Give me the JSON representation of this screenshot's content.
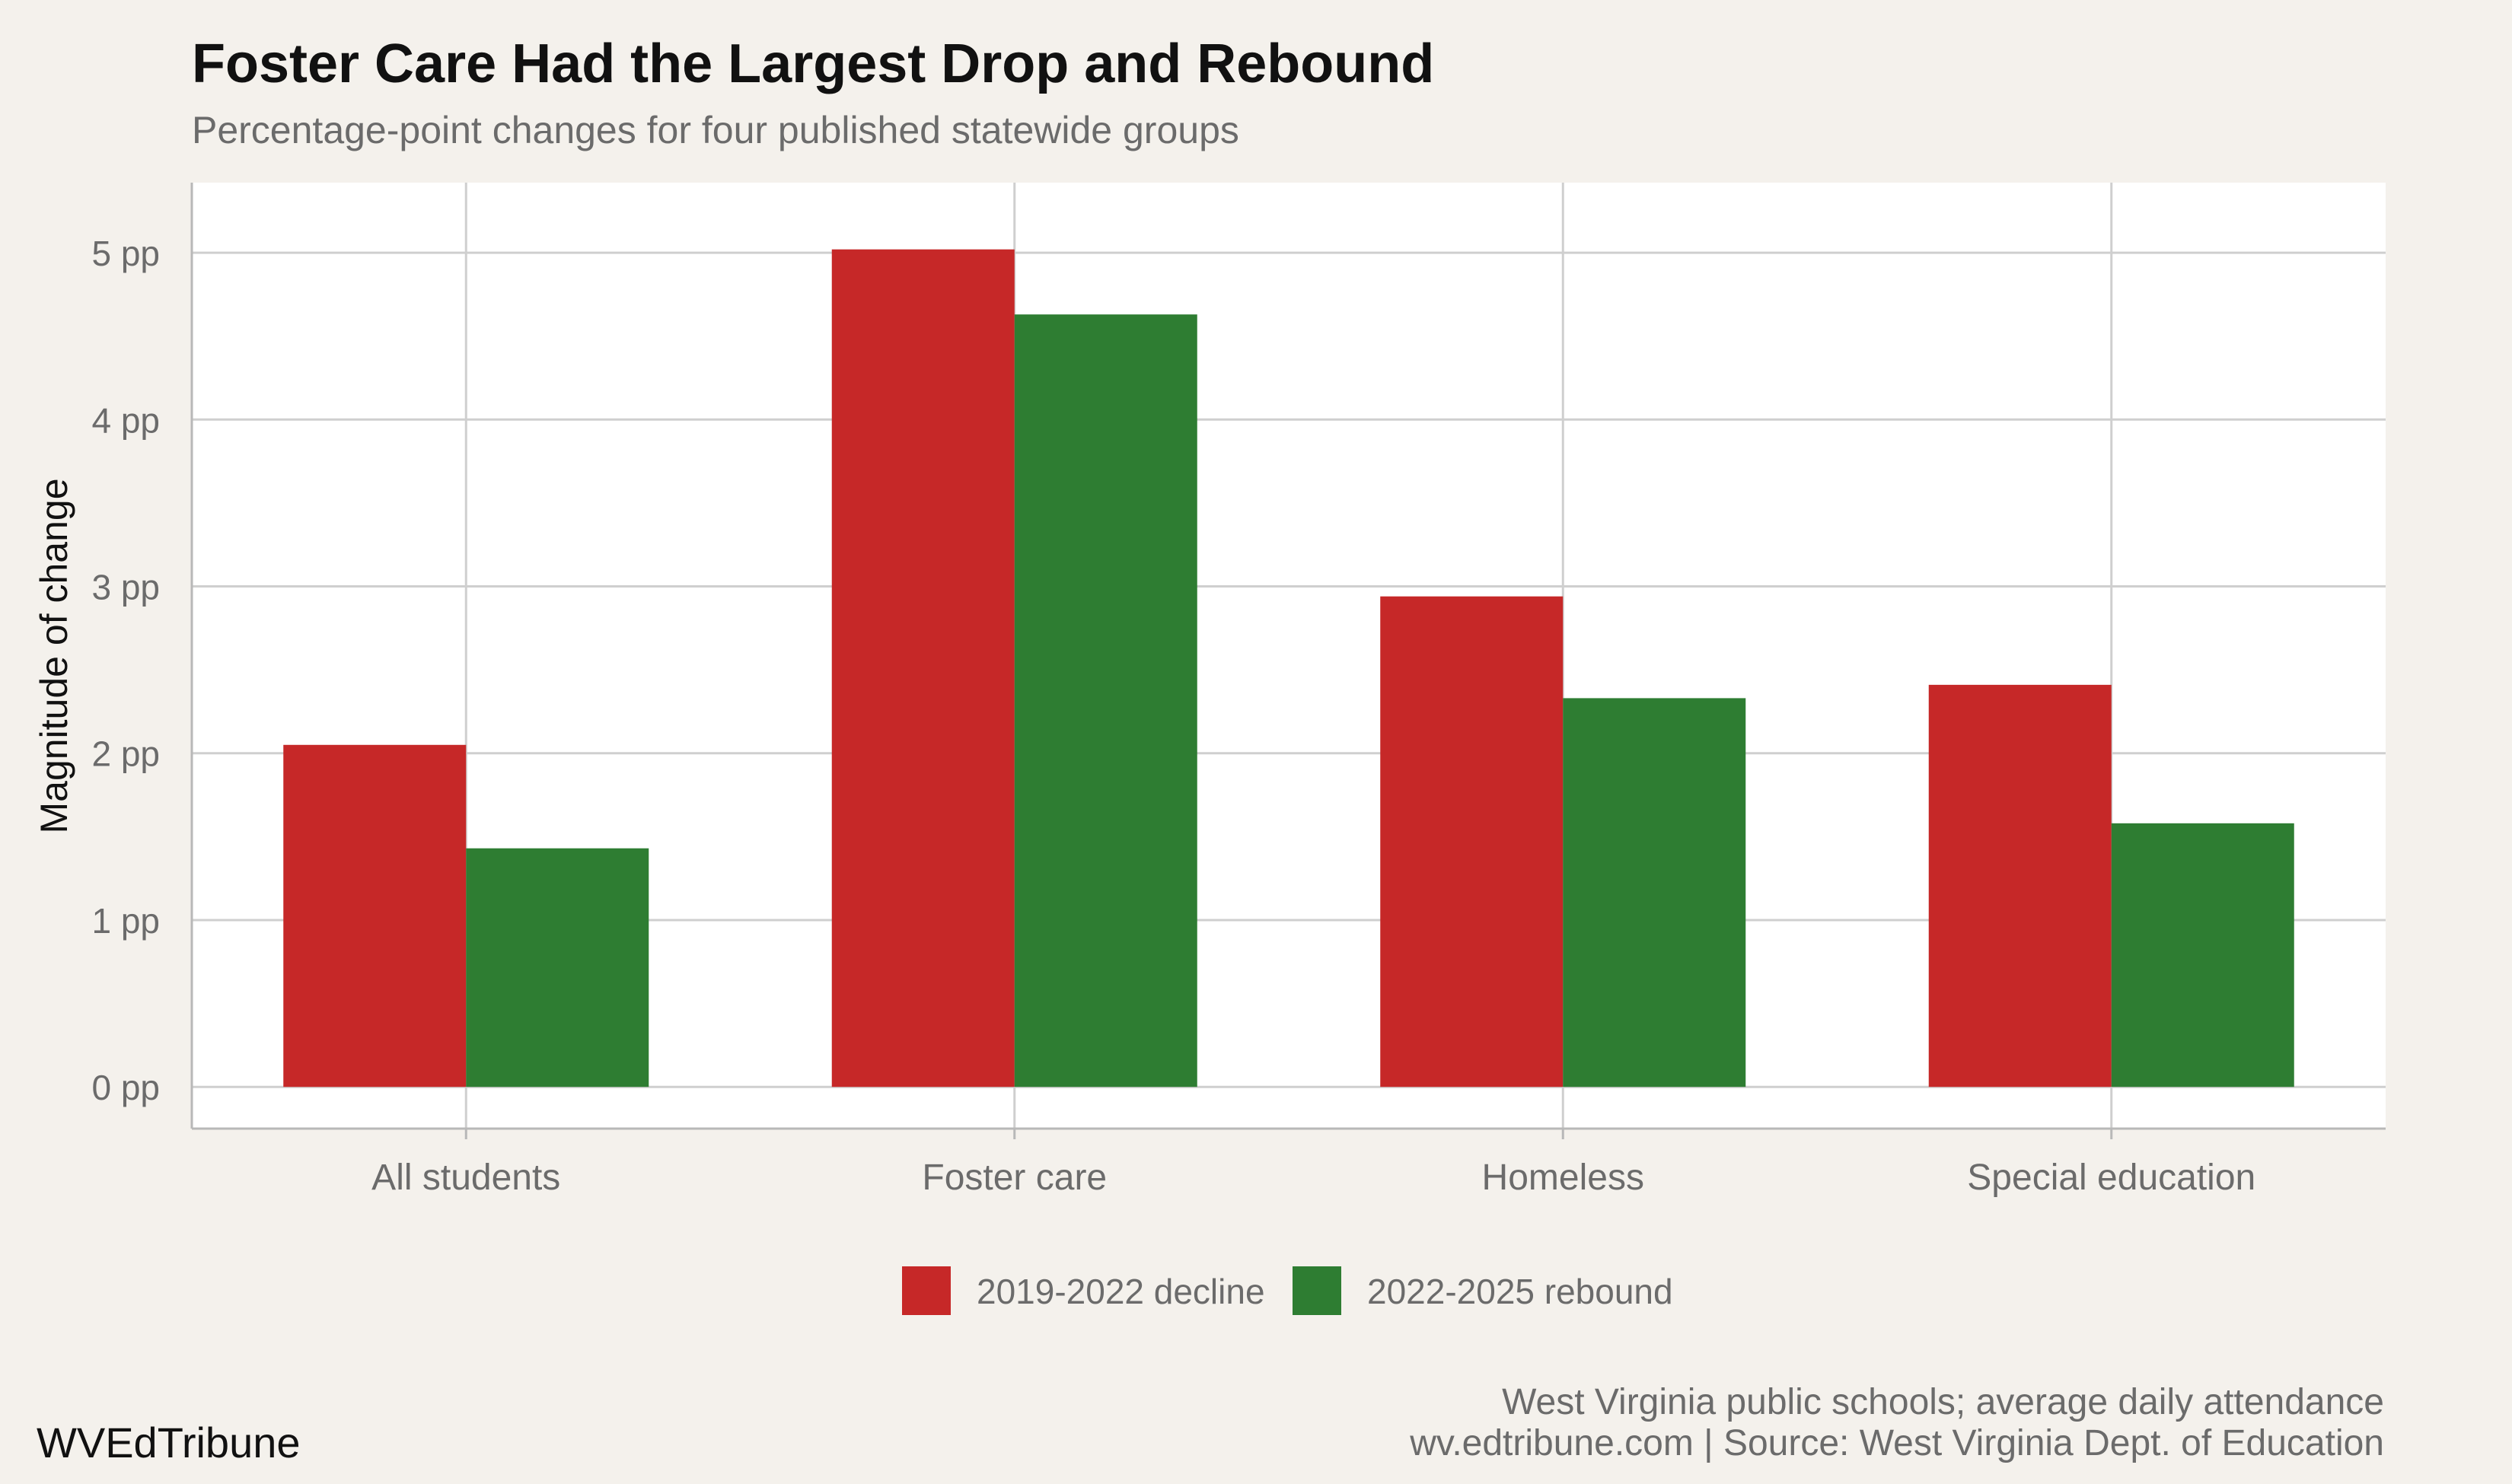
{
  "chart_data": {
    "type": "bar",
    "title": "Foster Care Had the Largest Drop and Rebound",
    "subtitle": "Percentage-point changes for four published statewide groups",
    "ylabel": "Magnitude of change",
    "xlabel": "",
    "categories": [
      "All students",
      "Foster care",
      "Homeless",
      "Special education"
    ],
    "series": [
      {
        "name": "2019-2022 decline",
        "color": "#c62828",
        "values": [
          2.05,
          5.02,
          2.94,
          2.41
        ]
      },
      {
        "name": "2022-2025 rebound",
        "color": "#2e7d32",
        "values": [
          1.43,
          4.63,
          2.33,
          1.58
        ]
      }
    ],
    "ylim": [
      -0.25,
      5.42
    ],
    "yticks": [
      0,
      1,
      2,
      3,
      4,
      5
    ],
    "ytick_labels": [
      "0 pp",
      "1 pp",
      "2 pp",
      "3 pp",
      "4 pp",
      "5 pp"
    ],
    "grid": true,
    "legend_position": "bottom-center"
  },
  "footer": {
    "note": "West Virginia public schools; average daily attendance",
    "source": "wv.edtribune.com | Source: West Virginia Dept. of Education",
    "brand": "WVEdTribune"
  }
}
